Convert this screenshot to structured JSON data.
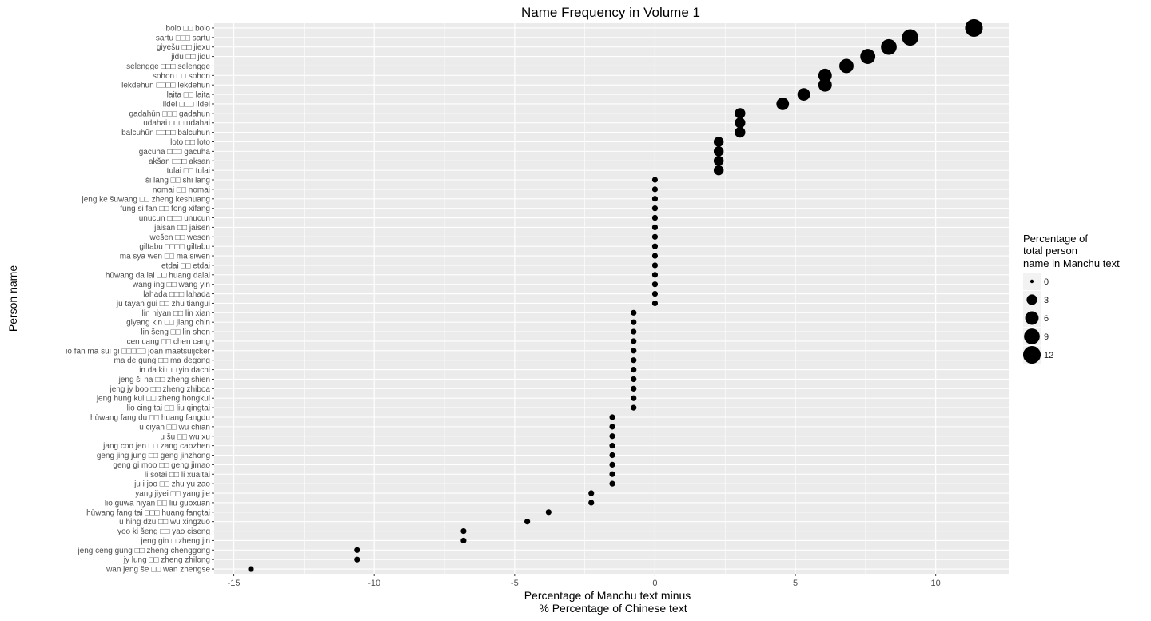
{
  "chart_data": {
    "type": "scatter",
    "title": "Name Frequency in Volume 1",
    "xlabel": [
      "Percentage of Manchu text minus",
      "% Percentage of Chinese text"
    ],
    "ylabel": "Person name",
    "xlim": [
      -15.7,
      12.6
    ],
    "x_ticks": [
      -15,
      -10,
      -5,
      0,
      5,
      10
    ],
    "x_tick_labels": [
      "-15",
      "-10",
      "-5",
      "0",
      "5",
      "10"
    ],
    "grid": true,
    "panel_background": "#ebebeb",
    "gridline_color": "#ffffff",
    "point_color": "#000000",
    "legend": {
      "title": [
        "Percentage of",
        "total person",
        "name in Manchu text"
      ],
      "position": "right",
      "values": [
        0,
        3,
        6,
        9,
        12
      ],
      "labels": [
        "0",
        "3",
        "6",
        "9",
        "12"
      ]
    },
    "points": [
      {
        "label": "bolo □□ bolo",
        "x": 11.36,
        "size": 12
      },
      {
        "label": "sartu □□□ sartu",
        "x": 9.09,
        "size": 10
      },
      {
        "label": "giyešu □□ jiexu",
        "x": 8.33,
        "size": 9
      },
      {
        "label": "jidu □□ jidu",
        "x": 7.58,
        "size": 8
      },
      {
        "label": "selengge □□□ selengge",
        "x": 6.82,
        "size": 7
      },
      {
        "label": "sohon □□ sohon",
        "x": 6.06,
        "size": 6
      },
      {
        "label": "lekdehun □□□□ lekdehun",
        "x": 6.06,
        "size": 6
      },
      {
        "label": "laita □□ laita",
        "x": 5.3,
        "size": 5
      },
      {
        "label": "ildei □□□ ildei",
        "x": 4.55,
        "size": 5
      },
      {
        "label": "gadahūn □□□ gadahun",
        "x": 3.03,
        "size": 3
      },
      {
        "label": "udahai □□□ udahai",
        "x": 3.03,
        "size": 3
      },
      {
        "label": "balcuhūn □□□□ balcuhun",
        "x": 3.03,
        "size": 3
      },
      {
        "label": "loto □□ loto",
        "x": 2.27,
        "size": 2.5
      },
      {
        "label": "gacuha □□□ gacuha",
        "x": 2.27,
        "size": 2.5
      },
      {
        "label": "akšan □□□ aksan",
        "x": 2.27,
        "size": 2.5
      },
      {
        "label": "tulai □□ tulai",
        "x": 2.27,
        "size": 2.5
      },
      {
        "label": "ši lang □□ shi lang",
        "x": 0,
        "size": 0.3
      },
      {
        "label": "nomai □□ nomai",
        "x": 0,
        "size": 0.3
      },
      {
        "label": "jeng ke šuwang □□ zheng keshuang",
        "x": 0,
        "size": 0.3
      },
      {
        "label": "fung si fan □□ fong xifang",
        "x": 0,
        "size": 0.3
      },
      {
        "label": "unucun □□□ unucun",
        "x": 0,
        "size": 0.3
      },
      {
        "label": "jaisan □□ jaisen",
        "x": 0,
        "size": 0.3
      },
      {
        "label": "wešen □□ wesen",
        "x": 0,
        "size": 0.3
      },
      {
        "label": "giltabu □□□□ giltabu",
        "x": 0,
        "size": 0.3
      },
      {
        "label": "ma sya wen □□ ma siwen",
        "x": 0,
        "size": 0.3
      },
      {
        "label": "etdai □□ etdai",
        "x": 0,
        "size": 0.3
      },
      {
        "label": "hūwang da lai □□ huang dalai",
        "x": 0,
        "size": 0.3
      },
      {
        "label": "wang ing □□ wang yin",
        "x": 0,
        "size": 0.3
      },
      {
        "label": "lahada □□□ lahada",
        "x": 0,
        "size": 0.3
      },
      {
        "label": "ju tayan gui □□ zhu tiangui",
        "x": 0,
        "size": 0.3
      },
      {
        "label": "lin hiyan □□ lin xian",
        "x": -0.76,
        "size": 0.3
      },
      {
        "label": "giyang kin □□ jiang chin",
        "x": -0.76,
        "size": 0.3
      },
      {
        "label": "lin šeng □□ lin shen",
        "x": -0.76,
        "size": 0.3
      },
      {
        "label": "cen cang □□ chen cang",
        "x": -0.76,
        "size": 0.3
      },
      {
        "label": "io fan ma sui gi □□□□□ joan maetsuijcker",
        "x": -0.76,
        "size": 0.3
      },
      {
        "label": "ma de gung □□ ma degong",
        "x": -0.76,
        "size": 0.3
      },
      {
        "label": "in da ki □□ yin dachi",
        "x": -0.76,
        "size": 0.3
      },
      {
        "label": "jeng ši na □□ zheng shien",
        "x": -0.76,
        "size": 0.3
      },
      {
        "label": "jeng jy boo □□ zheng zhiboa",
        "x": -0.76,
        "size": 0.3
      },
      {
        "label": "jeng hung kui □□ zheng hongkui",
        "x": -0.76,
        "size": 0.3
      },
      {
        "label": "lio cing tai □□ liu qingtai",
        "x": -0.76,
        "size": 0.3
      },
      {
        "label": "hūwang fang du □□ huang fangdu",
        "x": -1.52,
        "size": 0.3
      },
      {
        "label": "u ciyan □□ wu chian",
        "x": -1.52,
        "size": 0.3
      },
      {
        "label": "u šu □□ wu xu",
        "x": -1.52,
        "size": 0.3
      },
      {
        "label": "jang coo jen □□ zang caozhen",
        "x": -1.52,
        "size": 0.3
      },
      {
        "label": "geng jing jung □□ geng jinzhong",
        "x": -1.52,
        "size": 0.3
      },
      {
        "label": "geng gi moo □□ geng jimao",
        "x": -1.52,
        "size": 0.3
      },
      {
        "label": "li sotai □□ li xuaitai",
        "x": -1.52,
        "size": 0.3
      },
      {
        "label": "ju i joo □□ zhu yu zao",
        "x": -1.52,
        "size": 0.3
      },
      {
        "label": "yang jiyei □□ yang jie",
        "x": -2.27,
        "size": 0.3
      },
      {
        "label": "lio guwa hiyan □□ liu guoxuan",
        "x": -2.27,
        "size": 0.3
      },
      {
        "label": "hūwang fang tai □□□ huang fangtai",
        "x": -3.79,
        "size": 0.3
      },
      {
        "label": "u hing dzu □□ wu xingzuo",
        "x": -4.55,
        "size": 0.3
      },
      {
        "label": "yoo ki šeng □□ yao ciseng",
        "x": -6.82,
        "size": 0.3
      },
      {
        "label": "jeng gin □ zheng jin",
        "x": -6.82,
        "size": 0.3
      },
      {
        "label": "jeng ceng gung □□ zheng chenggong",
        "x": -10.61,
        "size": 0.3
      },
      {
        "label": "jy lung □□ zheng zhilong",
        "x": -10.61,
        "size": 0.3
      },
      {
        "label": "wan jeng še □□ wan zhengse",
        "x": -14.39,
        "size": 0.3
      }
    ]
  }
}
